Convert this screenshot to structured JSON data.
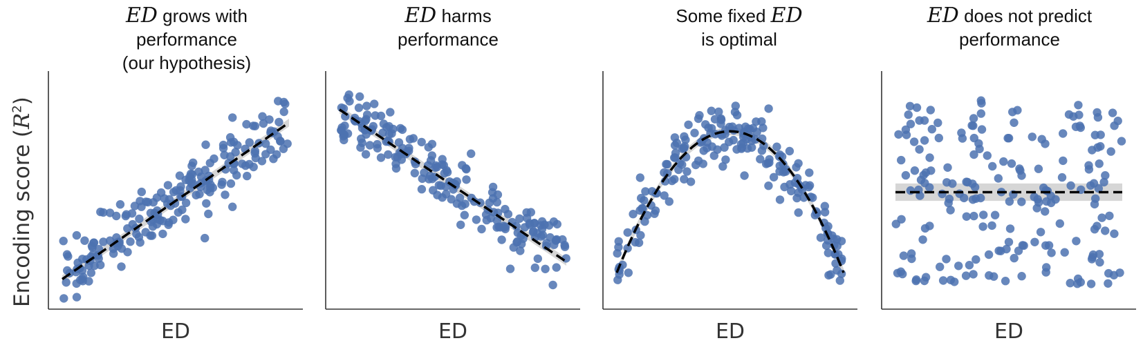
{
  "ylabel": {
    "text": "Encoding score (",
    "math": "R",
    "sup": "2",
    "close": ")"
  },
  "colors": {
    "points": "#4C72B0",
    "fit": "#000000",
    "band": "#c8c8c8",
    "axis": "#333333"
  },
  "chart_data": [
    {
      "type": "scatter",
      "title_parts": [
        {
          "math": "ED"
        },
        {
          "text": " grows with"
        },
        {
          "br": true
        },
        {
          "text": "performance"
        },
        {
          "br": true
        },
        {
          "text": "(our hypothesis)"
        }
      ],
      "xlabel": "ED",
      "ylabel": "Encoding score (R²)",
      "trend": "linear",
      "fit": "increasing linear",
      "n_points": 200,
      "noise": 0.07,
      "seed": 11,
      "grid": false,
      "legend": "none"
    },
    {
      "type": "scatter",
      "title_parts": [
        {
          "math": "ED"
        },
        {
          "text": " harms"
        },
        {
          "br": true
        },
        {
          "text": "performance"
        }
      ],
      "xlabel": "ED",
      "ylabel": "",
      "trend": "decreasing",
      "fit": "decreasing linear",
      "n_points": 200,
      "noise": 0.07,
      "seed": 23,
      "grid": false,
      "legend": "none"
    },
    {
      "type": "scatter",
      "title_parts": [
        {
          "text": "Some fixed "
        },
        {
          "math": "ED"
        },
        {
          "br": true
        },
        {
          "text": "is optimal"
        }
      ],
      "xlabel": "ED",
      "ylabel": "",
      "trend": "quadratic",
      "fit": "inverted U (quadratic)",
      "n_points": 200,
      "noise": 0.07,
      "seed": 37,
      "grid": false,
      "legend": "none"
    },
    {
      "type": "scatter",
      "title_parts": [
        {
          "math": "ED"
        },
        {
          "text": " does not predict"
        },
        {
          "br": true
        },
        {
          "text": "performance"
        }
      ],
      "xlabel": "ED",
      "ylabel": "",
      "trend": "flat",
      "fit": "flat (no relationship)",
      "n_points": 200,
      "noise": 0.28,
      "seed": 53,
      "grid": false,
      "legend": "none"
    }
  ]
}
